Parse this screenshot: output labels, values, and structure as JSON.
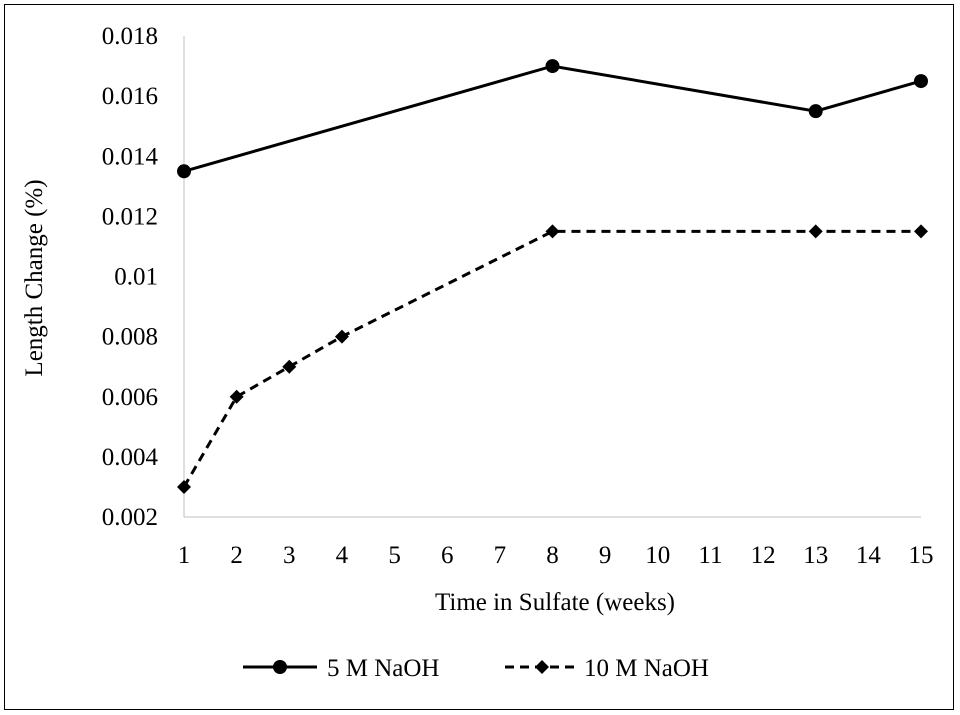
{
  "chart_data": {
    "type": "line",
    "xlabel": "Time in Sulfate (weeks)",
    "ylabel": "Length Change (%)",
    "x_ticks": [
      "1",
      "2",
      "3",
      "4",
      "5",
      "6",
      "7",
      "8",
      "9",
      "10",
      "11",
      "12",
      "13",
      "14",
      "15"
    ],
    "y_ticks": [
      "0.002",
      "0.004",
      "0.006",
      "0.008",
      "0.01",
      "0.012",
      "0.014",
      "0.016",
      "0.018"
    ],
    "xlim": [
      1,
      15
    ],
    "ylim": [
      0.002,
      0.018
    ],
    "grid": false,
    "legend_position": "bottom",
    "series": [
      {
        "name": "5 M NaOH",
        "line_style": "solid",
        "marker": "circle",
        "color": "#000000",
        "points": [
          {
            "x": 1,
            "y": 0.0135
          },
          {
            "x": 8,
            "y": 0.017
          },
          {
            "x": 13,
            "y": 0.0155
          },
          {
            "x": 15,
            "y": 0.0165
          }
        ]
      },
      {
        "name": "10 M NaOH",
        "line_style": "dashed",
        "marker": "diamond",
        "color": "#000000",
        "points": [
          {
            "x": 1,
            "y": 0.003
          },
          {
            "x": 2,
            "y": 0.006
          },
          {
            "x": 3,
            "y": 0.007
          },
          {
            "x": 4,
            "y": 0.008
          },
          {
            "x": 8,
            "y": 0.0115
          },
          {
            "x": 13,
            "y": 0.0115
          },
          {
            "x": 15,
            "y": 0.0115
          }
        ]
      }
    ]
  }
}
